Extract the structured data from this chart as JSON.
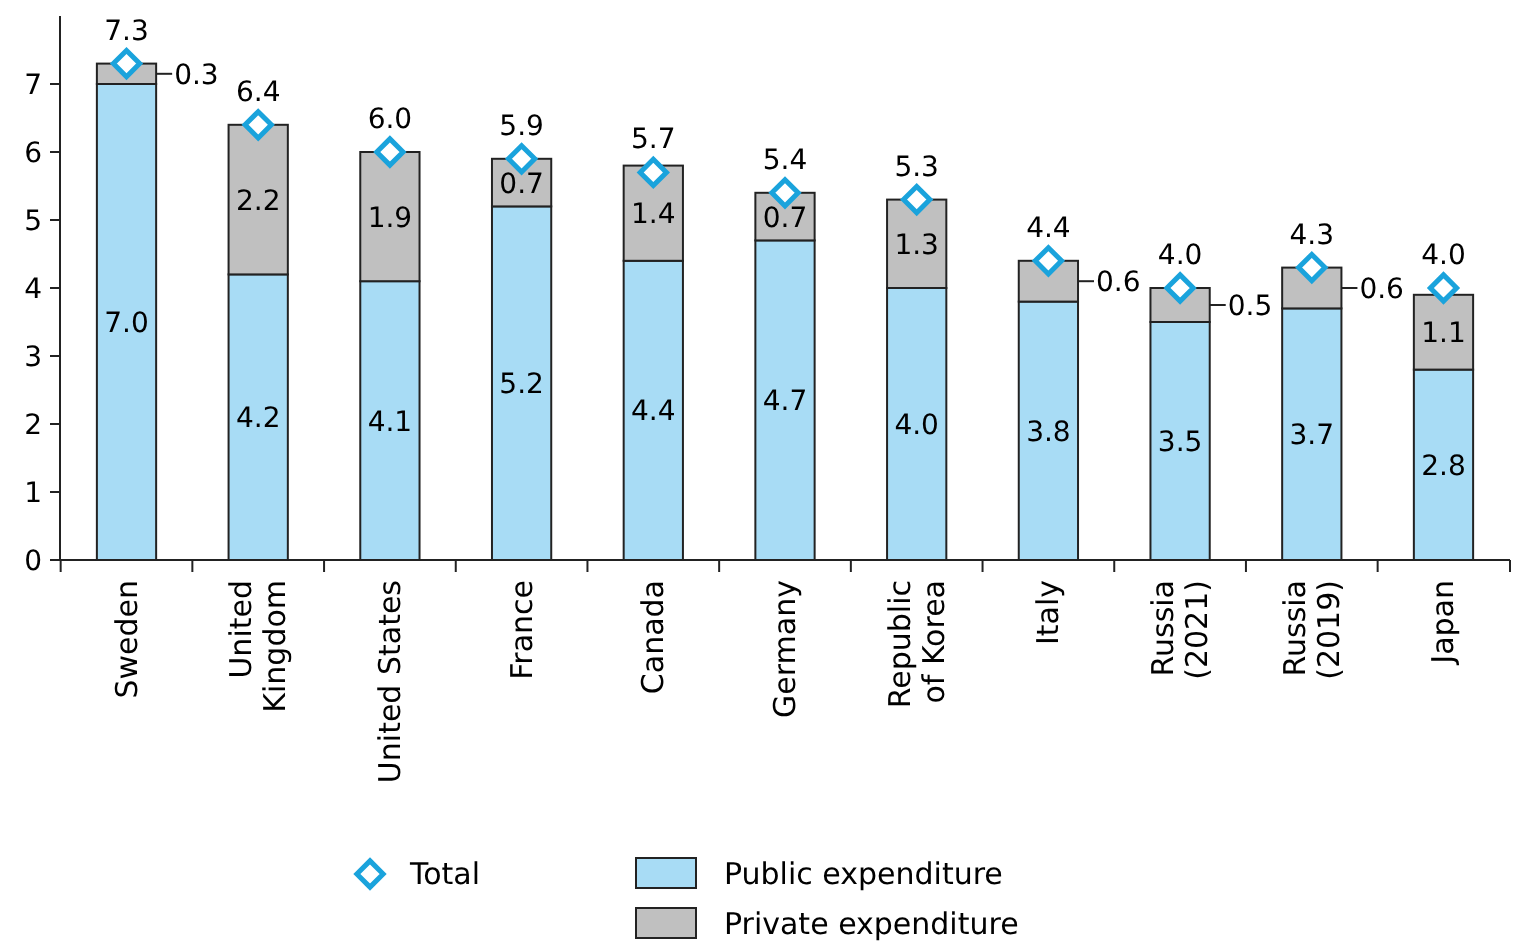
{
  "chart_data": {
    "type": "bar",
    "stacked": true,
    "categories": [
      "Sweden",
      "United\nKingdom",
      "United States",
      "France",
      "Canada",
      "Germany",
      "Republic\nof Korea",
      "Italy",
      "Russia\n(2021)",
      "Russia\n(2019)",
      "Japan"
    ],
    "series": [
      {
        "name": "Public expenditure",
        "color": "#a8dcf5",
        "values": [
          7.0,
          4.2,
          4.1,
          5.2,
          4.4,
          4.7,
          4.0,
          3.8,
          3.5,
          3.7,
          2.8
        ],
        "value_labels": [
          "7.0",
          "4.2",
          "4.1",
          "5.2",
          "4.4",
          "4.7",
          "4.0",
          "3.8",
          "3.5",
          "3.7",
          "2.8"
        ]
      },
      {
        "name": "Private expenditure",
        "color": "#c0c0c0",
        "values": [
          0.3,
          2.2,
          1.9,
          0.7,
          1.4,
          0.7,
          1.3,
          0.6,
          0.5,
          0.6,
          1.1
        ],
        "value_labels": [
          "0.3",
          "2.2",
          "1.9",
          "0.7",
          "1.4",
          "0.7",
          "1.3",
          "0.6",
          "0.5",
          "0.6",
          "1.1"
        ]
      },
      {
        "name": "Total",
        "type": "scatter",
        "color": "#1aa3dc",
        "marker": "diamond",
        "values": [
          7.3,
          6.4,
          6.0,
          5.9,
          5.7,
          5.4,
          5.3,
          4.4,
          4.0,
          4.3,
          4.0
        ],
        "value_labels": [
          "7.3",
          "6.4",
          "6.0",
          "5.9",
          "5.7",
          "5.4",
          "5.3",
          "4.4",
          "4.0",
          "4.3",
          "4.0"
        ]
      }
    ],
    "ylim": [
      0,
      8
    ],
    "yticks": [
      0,
      1,
      2,
      3,
      4,
      5,
      6,
      7
    ],
    "grid": false,
    "legend": "bottom"
  }
}
